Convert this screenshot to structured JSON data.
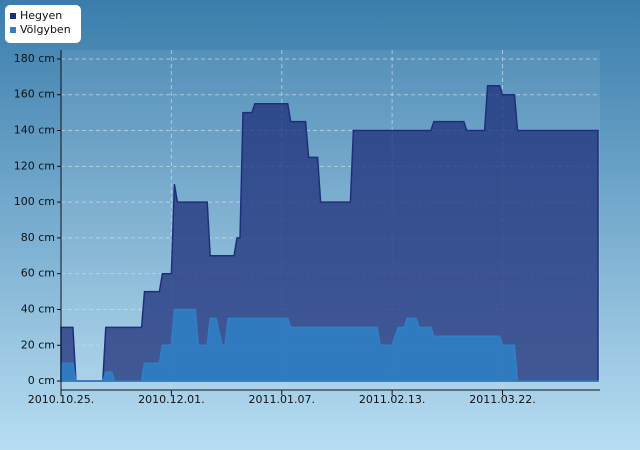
{
  "chart_data": {
    "type": "area",
    "x": [
      "2010.10.25.",
      "2010.10.29.",
      "2010.10.30.",
      "2010.11.08.",
      "2010.11.09.",
      "2010.11.11.",
      "2010.11.12.",
      "2010.11.21.",
      "2010.11.22.",
      "2010.11.27.",
      "2010.11.28.",
      "2010.12.01.",
      "2010.12.02.",
      "2010.12.03.",
      "2010.12.09.",
      "2010.12.10.",
      "2010.12.13.",
      "2010.12.14.",
      "2010.12.16.",
      "2010.12.18.",
      "2010.12.19.",
      "2010.12.20.",
      "2010.12.22.",
      "2010.12.23.",
      "2010.12.24.",
      "2010.12.25.",
      "2010.12.28.",
      "2010.12.29.",
      "2011.01.09.",
      "2011.01.10.",
      "2011.01.15.",
      "2011.01.16.",
      "2011.01.19.",
      "2011.01.20.",
      "2011.01.30.",
      "2011.01.31.",
      "2011.02.08.",
      "2011.02.09.",
      "2011.02.13.",
      "2011.02.14.",
      "2011.02.15.",
      "2011.02.17.",
      "2011.02.18.",
      "2011.02.21.",
      "2011.02.22.",
      "2011.02.26.",
      "2011.02.27.",
      "2011.03.09.",
      "2011.03.10.",
      "2011.03.16.",
      "2011.03.17.",
      "2011.03.21.",
      "2011.03.22.",
      "2011.03.26.",
      "2011.03.27.",
      "2011.04.23."
    ],
    "series": [
      {
        "name": "Hegyen",
        "color": "#1e2f7a",
        "values": [
          30,
          30,
          0,
          0,
          30,
          30,
          30,
          30,
          50,
          50,
          60,
          60,
          110,
          100,
          100,
          100,
          100,
          70,
          70,
          70,
          70,
          70,
          70,
          80,
          80,
          150,
          150,
          155,
          155,
          145,
          145,
          125,
          125,
          100,
          100,
          140,
          140,
          140,
          140,
          140,
          140,
          140,
          140,
          140,
          140,
          140,
          145,
          145,
          140,
          140,
          165,
          165,
          160,
          160,
          140,
          140
        ]
      },
      {
        "name": "Völgyben",
        "color": "#2f80c4",
        "values": [
          10,
          10,
          0,
          0,
          5,
          5,
          0,
          0,
          10,
          10,
          20,
          20,
          40,
          40,
          40,
          20,
          20,
          35,
          35,
          20,
          20,
          35,
          35,
          35,
          35,
          35,
          35,
          35,
          35,
          30,
          30,
          30,
          30,
          30,
          30,
          30,
          30,
          20,
          20,
          25,
          30,
          30,
          35,
          35,
          30,
          30,
          25,
          25,
          25,
          25,
          25,
          25,
          20,
          20,
          0,
          0
        ]
      }
    ],
    "xlim": [
      "2010.10.25.",
      "2011.04.23."
    ],
    "xticks": [
      "2010.10.25.",
      "2010.12.01.",
      "2011.01.07.",
      "2011.02.13.",
      "2011.03.22."
    ],
    "ylim": [
      -5,
      185
    ],
    "yticks": [
      {
        "value": 0,
        "label": "0 cm"
      },
      {
        "value": 20,
        "label": "20 cm"
      },
      {
        "value": 40,
        "label": "40 cm"
      },
      {
        "value": 60,
        "label": "60 cm"
      },
      {
        "value": 80,
        "label": "80 cm"
      },
      {
        "value": 100,
        "label": "100 cm"
      },
      {
        "value": 120,
        "label": "120 cm"
      },
      {
        "value": 140,
        "label": "140 cm"
      },
      {
        "value": 160,
        "label": "160 cm"
      },
      {
        "value": 180,
        "label": "180 cm"
      }
    ],
    "grid": true,
    "legend": "top-left"
  }
}
